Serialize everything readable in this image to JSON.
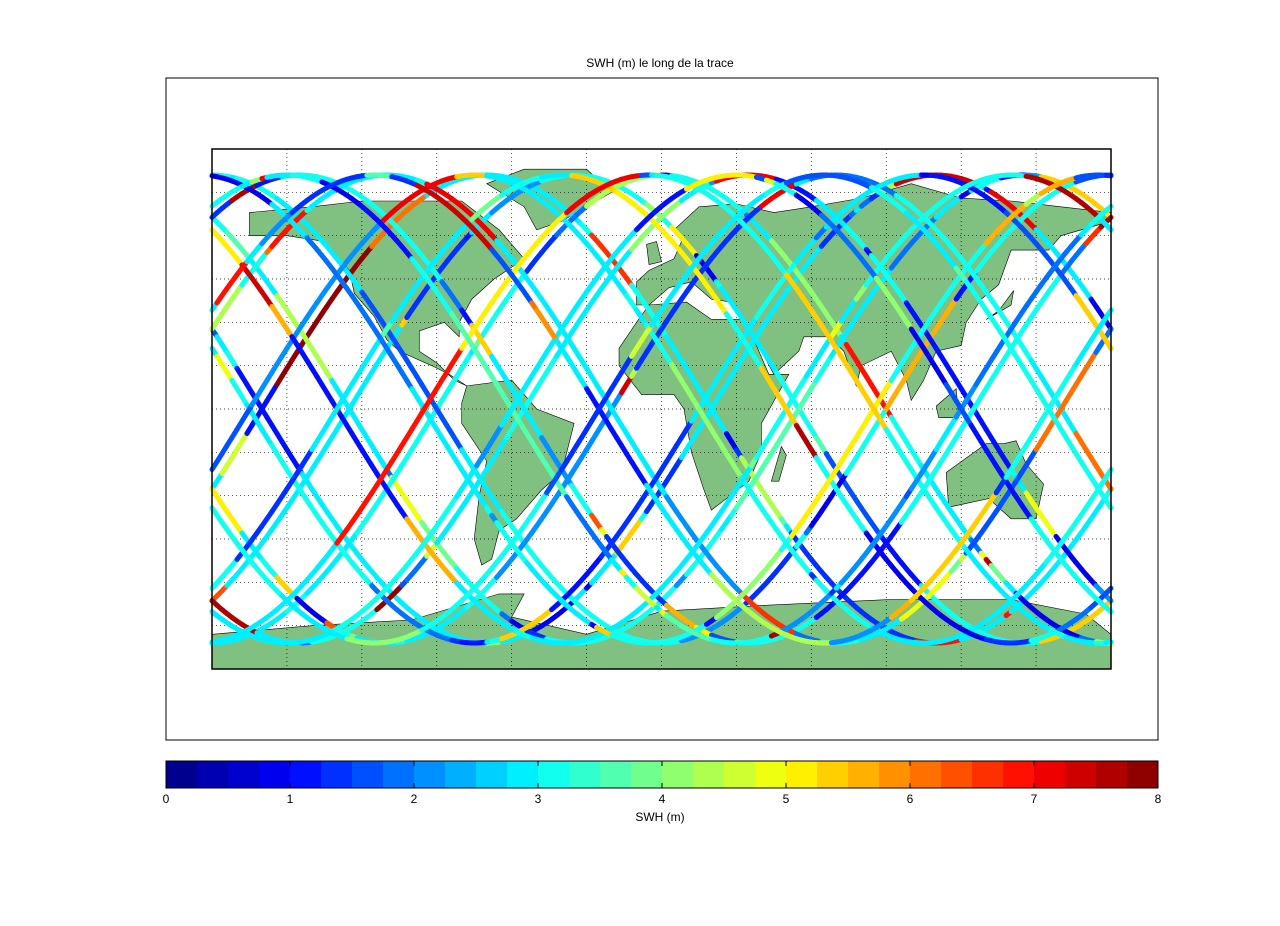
{
  "chart_data": {
    "type": "map",
    "title": "SWH (m) le long de la trace",
    "grid": true,
    "land_color": "#80c080",
    "colorbar": {
      "label": "SWH (m)",
      "lim": [
        0,
        8
      ],
      "ticks": [
        0,
        1,
        2,
        3,
        4,
        5,
        6,
        7,
        8
      ],
      "colors": [
        "#00008f",
        "#0000b0",
        "#0000cf",
        "#0000ef",
        "#0010ff",
        "#0030ff",
        "#0050ff",
        "#0070ff",
        "#0090ff",
        "#00b0ff",
        "#00d0ff",
        "#00efff",
        "#10ffef",
        "#30ffcf",
        "#50ffaf",
        "#70ff8f",
        "#8fff70",
        "#afff50",
        "#cfff30",
        "#efff10",
        "#ffef00",
        "#ffcf00",
        "#ffb000",
        "#ff9000",
        "#ff7000",
        "#ff5000",
        "#ff3000",
        "#ff1000",
        "#ef0000",
        "#cf0000",
        "#b00000",
        "#8f0000"
      ]
    }
  }
}
